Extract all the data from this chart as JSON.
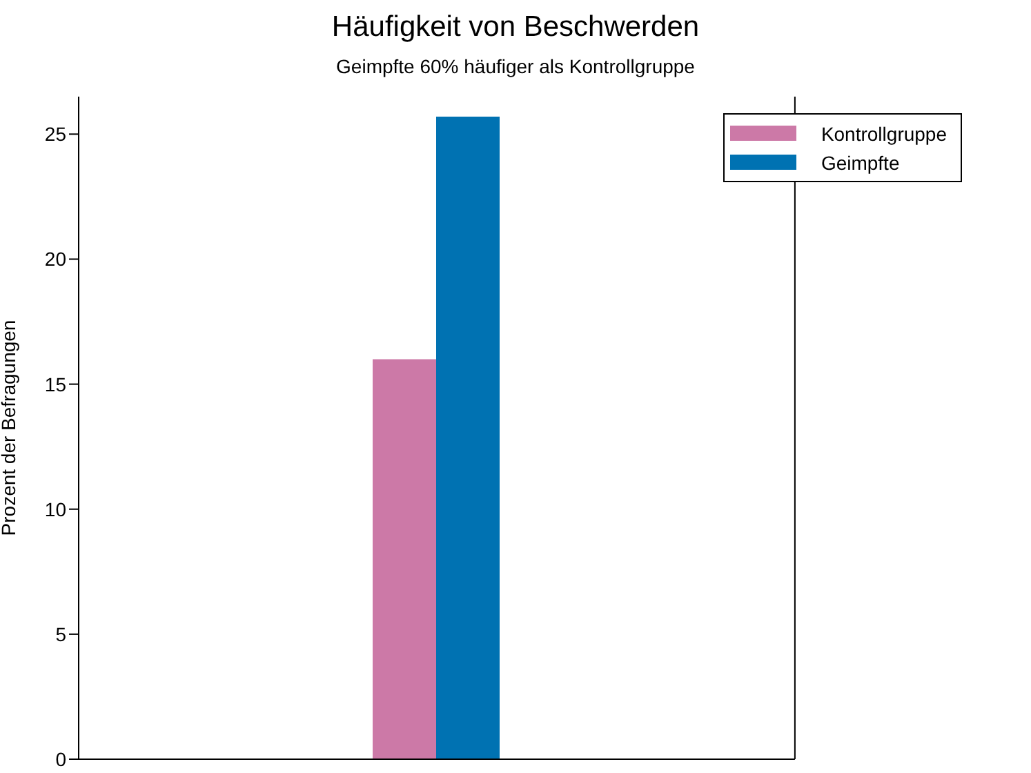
{
  "chart_data": {
    "type": "bar",
    "title": "Häufigkeit von Beschwerden",
    "subtitle": "Geimpfte 60% häufiger als Kontrollgruppe",
    "ylabel": "Prozent der Befragungen",
    "categories": [
      null
    ],
    "series": [
      {
        "name": "Kontrollgruppe",
        "color": "#cc79a7",
        "values": [
          16
        ]
      },
      {
        "name": "Geimpfte",
        "color": "#0072b2",
        "values": [
          25.7
        ]
      }
    ],
    "ylim": [
      0,
      26.5
    ],
    "yticks": [
      0,
      5,
      10,
      15,
      20,
      25
    ],
    "grid": false,
    "legend": "top right",
    "tick_labels": "y"
  }
}
